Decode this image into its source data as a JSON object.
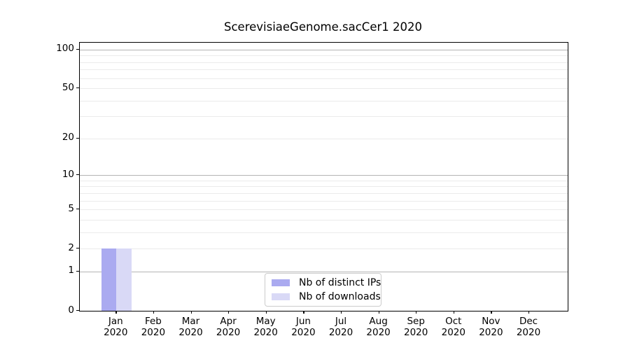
{
  "title": "ScerevisiaeGenome.sacCer1 2020",
  "chart_data": {
    "type": "bar",
    "title": "ScerevisiaeGenome.sacCer1 2020",
    "categories": [
      "Jan",
      "Feb",
      "Mar",
      "Apr",
      "May",
      "Jun",
      "Jul",
      "Aug",
      "Sep",
      "Oct",
      "Nov",
      "Dec"
    ],
    "category_year": "2020",
    "series": [
      {
        "name": "Nb of distinct IPs",
        "color": "#aaaaf0",
        "values": [
          2,
          0,
          0,
          0,
          0,
          0,
          0,
          0,
          0,
          0,
          0,
          0
        ]
      },
      {
        "name": "Nb of downloads",
        "color": "#d9d9f6",
        "values": [
          2,
          0,
          0,
          0,
          0,
          0,
          0,
          0,
          0,
          0,
          0,
          0
        ]
      }
    ],
    "xlabel": "",
    "ylabel": "",
    "y_scale": "log1p",
    "ylim": [
      0,
      113
    ],
    "y_ticks": [
      0,
      1,
      2,
      5,
      10,
      20,
      50,
      100
    ],
    "grid": "on",
    "grid_major_lines": [
      1,
      10,
      100
    ],
    "grid_minor_lines": [
      2,
      3,
      4,
      5,
      6,
      7,
      8,
      9,
      20,
      30,
      40,
      50,
      60,
      70,
      80,
      90
    ],
    "legend_position": "lower center",
    "colors": {
      "grid_major": "#b4b4b4",
      "grid_minor": "#ebebeb",
      "spine": "#000000",
      "background": "#ffffff"
    }
  }
}
